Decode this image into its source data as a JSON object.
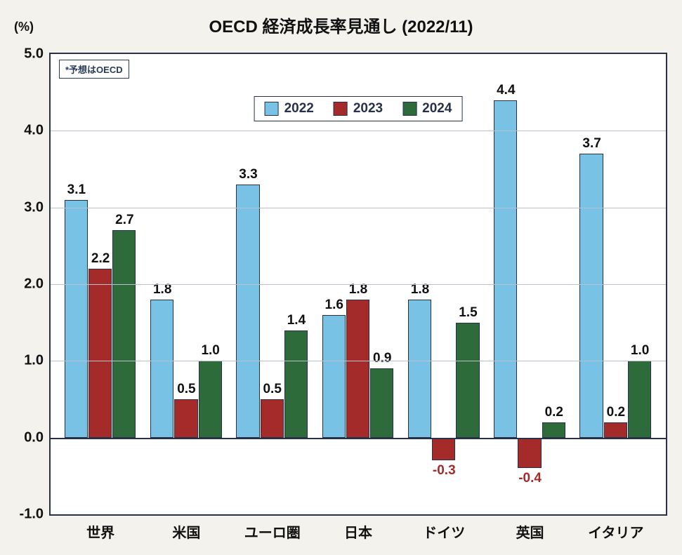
{
  "chart": {
    "type": "bar",
    "title": "OECD 経済成長率見通し (2022/11)",
    "title_fontsize": 24,
    "y_unit_label": "(%)",
    "y_unit_fontsize": 18,
    "note": "*予想はOECD",
    "note_fontsize": 13,
    "background_color": "#f4f2ed",
    "plot_background_color": "#ffffff",
    "border_color": "#283147",
    "grid_color": "#b9c1cc",
    "ylim": [
      -1.0,
      5.0
    ],
    "yticks": [
      -1.0,
      0.0,
      1.0,
      2.0,
      3.0,
      4.0,
      5.0
    ],
    "ytick_labels": [
      "-1.0",
      "0.0",
      "1.0",
      "2.0",
      "3.0",
      "4.0",
      "5.0"
    ],
    "ytick_fontsize": 20,
    "xlabel_fontsize": 20,
    "datalabel_fontsize": 19,
    "bar_width": 0.28,
    "group_gap": 0.16,
    "categories": [
      "世界",
      "米国",
      "ユーロ圏",
      "日本",
      "ドイツ",
      "英国",
      "イタリア"
    ],
    "series": [
      {
        "name": "2022",
        "color": "#78c2e6",
        "values": [
          3.1,
          1.8,
          3.3,
          1.6,
          1.8,
          4.4,
          3.7
        ],
        "labels": [
          "3.1",
          "1.8",
          "3.3",
          "1.6",
          "1.8",
          "4.4",
          "3.7"
        ]
      },
      {
        "name": "2023",
        "color": "#a52a2a",
        "values": [
          2.2,
          0.5,
          0.5,
          1.8,
          -0.3,
          -0.4,
          0.2
        ],
        "labels": [
          "2.2",
          "0.5",
          "0.5",
          "1.8",
          "-0.3",
          "-0.4",
          "0.2"
        ]
      },
      {
        "name": "2024",
        "color": "#2e6b3a",
        "values": [
          2.7,
          1.0,
          1.4,
          0.9,
          1.5,
          0.2,
          1.0
        ],
        "labels": [
          "2.7",
          "1.0",
          "1.4",
          "0.9",
          "1.5",
          "0.2",
          "1.0"
        ]
      }
    ],
    "legend": {
      "fontsize": 19,
      "border_color": "#283147"
    }
  }
}
